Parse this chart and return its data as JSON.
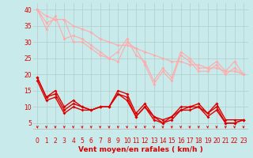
{
  "background_color": "#c8eaea",
  "grid_color": "#b0cccc",
  "xlabel": "Vent moyen/en rafales ( km/h )",
  "x_ticks": [
    0,
    1,
    2,
    3,
    4,
    5,
    6,
    7,
    8,
    9,
    10,
    11,
    12,
    13,
    14,
    15,
    16,
    17,
    18,
    19,
    20,
    21,
    22,
    23
  ],
  "ylim": [
    3,
    42
  ],
  "y_ticks": [
    5,
    10,
    15,
    20,
    25,
    30,
    35,
    40
  ],
  "series": [
    {
      "color": "#ffaaaa",
      "linewidth": 0.8,
      "marker": "D",
      "markersize": 2.0,
      "y": [
        40,
        34,
        38,
        31,
        32,
        31,
        29,
        27,
        25,
        27,
        31,
        26,
        24,
        18,
        22,
        19,
        27,
        25,
        22,
        22,
        24,
        21,
        24,
        20
      ]
    },
    {
      "color": "#ffaaaa",
      "linewidth": 0.8,
      "marker": "D",
      "markersize": 2.0,
      "y": [
        40,
        36,
        37,
        37,
        30,
        30,
        28,
        26,
        25,
        24,
        30,
        28,
        23,
        17,
        21,
        18,
        26,
        24,
        21,
        21,
        23,
        20,
        22,
        20
      ]
    },
    {
      "color": "#ffaaaa",
      "linewidth": 0.8,
      "marker": "D",
      "markersize": 2.0,
      "y": [
        40,
        38,
        37,
        37,
        35,
        34,
        33,
        31,
        30,
        29,
        29,
        28,
        27,
        26,
        25,
        24,
        24,
        23,
        23,
        22,
        22,
        21,
        21,
        20
      ]
    },
    {
      "color": "#dd0000",
      "linewidth": 1.0,
      "marker": "D",
      "markersize": 2.0,
      "y": [
        19,
        13,
        15,
        10,
        12,
        10,
        9,
        10,
        10,
        15,
        14,
        8,
        11,
        7,
        6,
        7,
        10,
        10,
        11,
        8,
        11,
        6,
        6,
        6
      ]
    },
    {
      "color": "#dd0000",
      "linewidth": 1.0,
      "marker": "D",
      "markersize": 2.0,
      "y": [
        19,
        13,
        14,
        9,
        11,
        10,
        9,
        10,
        10,
        14,
        13,
        7,
        10,
        7,
        5,
        7,
        9,
        10,
        10,
        8,
        10,
        5,
        5,
        6
      ]
    },
    {
      "color": "#dd0000",
      "linewidth": 1.0,
      "marker": "D",
      "markersize": 2.0,
      "y": [
        18,
        12,
        13,
        8,
        10,
        9,
        9,
        10,
        10,
        14,
        12,
        7,
        10,
        6,
        5,
        6,
        9,
        9,
        10,
        7,
        9,
        5,
        5,
        6
      ]
    }
  ],
  "arrow_color": "#dd0000",
  "tick_fontsize": 5.5,
  "axis_fontsize": 6.5
}
